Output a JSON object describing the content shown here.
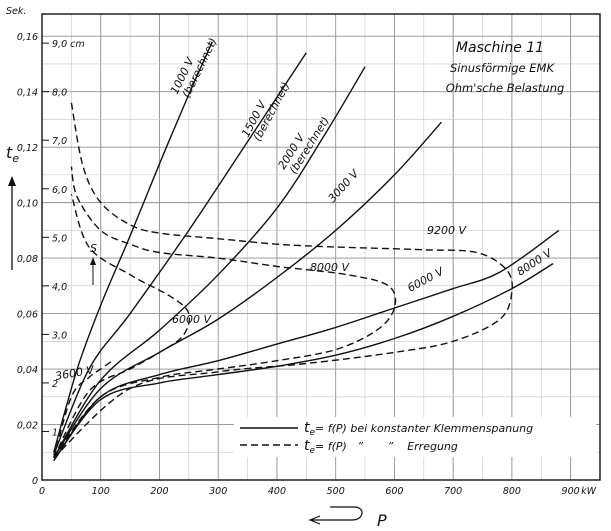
{
  "chart_data": {
    "type": "line",
    "title": "Maschine 11",
    "subtitle": [
      "Sinusförmige EMK",
      "Ohm'sche Belastung"
    ],
    "y_unit": "Sek.",
    "y_symbol": "t",
    "y_symbol_sub": "e",
    "x_unit": "kW",
    "x_symbol": "P",
    "xlim": [
      0,
      950
    ],
    "ylim": [
      0,
      0.168
    ],
    "xticks": [
      "0",
      "100",
      "200",
      "300",
      "400",
      "500",
      "600",
      "700",
      "800",
      "900"
    ],
    "yticks": [
      "0",
      "0,02",
      "0,04",
      "0,06",
      "0,08",
      "0,10",
      "0,12",
      "0,14",
      "0,16"
    ],
    "y2_ticks": [
      "1",
      "2",
      "3,0",
      "4,0",
      "5,0",
      "6,0",
      "7,0",
      "8,0",
      "9,0 cm"
    ],
    "grid": true,
    "marker_label": "S",
    "legend": {
      "line1_formula": "t",
      "line1_sub": "e",
      "line1_text": "= f(P) bei konstanter Klemmenspanung",
      "line2_formula": "t",
      "line2_sub": "e",
      "line2_text": "= f(P)   ”       ”    Erregung"
    },
    "series": [
      {
        "name": "1000 V",
        "note": "(berechnet)",
        "style": "solid",
        "x": [
          20,
          60,
          100,
          150,
          200,
          250,
          290
        ],
        "y": [
          0.01,
          0.04,
          0.063,
          0.088,
          0.114,
          0.139,
          0.158
        ]
      },
      {
        "name": "1500 V",
        "note": "(berechnet)",
        "style": "solid",
        "x": [
          20,
          80,
          150,
          250,
          350,
          450
        ],
        "y": [
          0.009,
          0.04,
          0.06,
          0.09,
          0.122,
          0.154
        ]
      },
      {
        "name": "2000 V",
        "note": "(berechnet)",
        "style": "solid",
        "x": [
          20,
          100,
          200,
          300,
          400,
          480,
          550
        ],
        "y": [
          0.008,
          0.036,
          0.054,
          0.074,
          0.098,
          0.124,
          0.149
        ]
      },
      {
        "name": "3000 V",
        "style": "solid",
        "x": [
          20,
          100,
          200,
          300,
          400,
          500,
          600,
          680
        ],
        "y": [
          0.008,
          0.033,
          0.046,
          0.058,
          0.073,
          0.09,
          0.11,
          0.129
        ]
      },
      {
        "name": "6000 V",
        "style": "solid",
        "x": [
          20,
          100,
          200,
          300,
          400,
          500,
          600,
          700,
          780,
          880
        ],
        "y": [
          0.007,
          0.03,
          0.038,
          0.043,
          0.049,
          0.055,
          0.062,
          0.069,
          0.075,
          0.09
        ]
      },
      {
        "name": "8000 V",
        "style": "solid",
        "x": [
          20,
          100,
          200,
          300,
          400,
          500,
          600,
          700,
          800,
          870
        ],
        "y": [
          0.007,
          0.029,
          0.035,
          0.038,
          0.041,
          0.045,
          0.051,
          0.059,
          0.069,
          0.078
        ]
      },
      {
        "name": "3600 V",
        "style": "dashed",
        "x": [
          20,
          50,
          80,
          100,
          120
        ],
        "y": [
          0.008,
          0.03,
          0.037,
          0.04,
          0.043
        ]
      },
      {
        "name": "6000 V",
        "style": "dashed",
        "x": [
          20,
          80,
          150,
          200,
          240,
          250,
          220,
          150,
          80,
          50
        ],
        "y": [
          0.008,
          0.032,
          0.04,
          0.046,
          0.052,
          0.06,
          0.066,
          0.074,
          0.084,
          0.103
        ]
      },
      {
        "name": "8000 V",
        "style": "dashed",
        "x": [
          20,
          100,
          200,
          300,
          400,
          500,
          570,
          600,
          590,
          520,
          400,
          300,
          200,
          150,
          100,
          60,
          50
        ],
        "y": [
          0.008,
          0.03,
          0.037,
          0.04,
          0.043,
          0.047,
          0.054,
          0.062,
          0.07,
          0.074,
          0.077,
          0.08,
          0.082,
          0.085,
          0.09,
          0.102,
          0.113
        ]
      },
      {
        "name": "9200 V",
        "style": "dashed",
        "x": [
          20,
          150,
          300,
          450,
          600,
          700,
          780,
          800,
          790,
          740,
          650,
          500,
          400,
          300,
          200,
          150,
          100,
          70,
          50
        ],
        "y": [
          0.008,
          0.033,
          0.039,
          0.042,
          0.046,
          0.05,
          0.058,
          0.068,
          0.076,
          0.082,
          0.083,
          0.084,
          0.085,
          0.087,
          0.089,
          0.092,
          0.1,
          0.113,
          0.136
        ]
      }
    ]
  }
}
